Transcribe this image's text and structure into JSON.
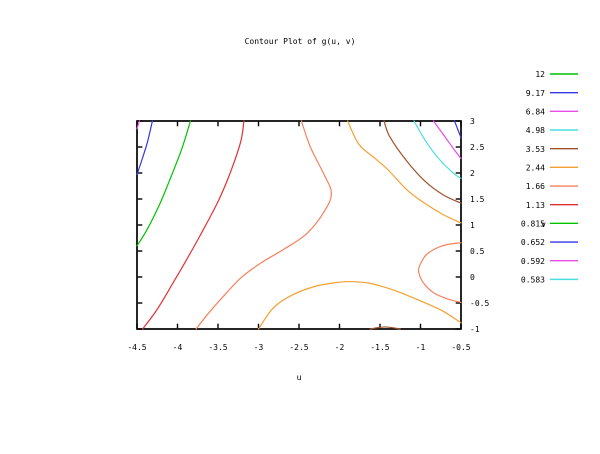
{
  "title": "Contour Plot of g(u, v)",
  "chart_data": {
    "type": "contour",
    "title": "Contour Plot of g(u, v)",
    "xlabel": "u",
    "ylabel": "v",
    "xlim": [
      -4.5,
      -0.5
    ],
    "ylim": [
      -1,
      3
    ],
    "x_ticks": [
      "-4.5",
      "-4",
      "-3.5",
      "-3",
      "-2.5",
      "-2",
      "-1.5",
      "-1",
      "-0.5"
    ],
    "y_ticks": [
      "-1",
      "-0.5",
      "0",
      "0.5",
      "1",
      "1.5",
      "2",
      "2.5",
      "3"
    ],
    "grid": false,
    "legend_position": "right-outside",
    "levels": [
      {
        "label": "12",
        "color": "#00c400"
      },
      {
        "label": "9.17",
        "color": "#3636e8"
      },
      {
        "label": "6.84",
        "color": "#ea4dea"
      },
      {
        "label": "4.98",
        "color": "#49dede"
      },
      {
        "label": "3.53",
        "color": "#a0522d"
      },
      {
        "label": "2.44",
        "color": "#f5a033"
      },
      {
        "label": "1.66",
        "color": "#f5825f"
      },
      {
        "label": "1.13",
        "color": "#e23333"
      },
      {
        "label": "0.815",
        "color": "#00c400"
      },
      {
        "label": "0.652",
        "color": "#3636e8"
      },
      {
        "label": "0.592",
        "color": "#ea4dea"
      },
      {
        "label": "0.583",
        "color": "#49dede"
      }
    ],
    "contour_paths": [
      {
        "level": "0.592",
        "color": "#ea4dea",
        "points": [
          [
            -4.47,
            3
          ],
          [
            -4.5,
            2.85
          ]
        ]
      },
      {
        "level": "0.652",
        "color": "#3636e8",
        "points": [
          [
            -4.31,
            3
          ],
          [
            -4.37,
            2.6
          ],
          [
            -4.44,
            2.25
          ],
          [
            -4.5,
            1.97
          ]
        ]
      },
      {
        "level": "0.815",
        "color": "#00c400",
        "points": [
          [
            -3.84,
            3
          ],
          [
            -3.95,
            2.45
          ],
          [
            -4.1,
            1.85
          ],
          [
            -4.22,
            1.4
          ],
          [
            -4.38,
            0.9
          ],
          [
            -4.5,
            0.6
          ]
        ]
      },
      {
        "level": "1.13",
        "color": "#e23333",
        "points": [
          [
            -3.18,
            3
          ],
          [
            -3.22,
            2.6
          ],
          [
            -3.35,
            2.0
          ],
          [
            -3.5,
            1.45
          ],
          [
            -3.72,
            0.8
          ],
          [
            -3.9,
            0.3
          ],
          [
            -4.05,
            -0.1
          ],
          [
            -4.25,
            -0.62
          ],
          [
            -4.43,
            -1
          ]
        ]
      },
      {
        "level": "1.66",
        "color": "#f5825f",
        "points": [
          [
            -2.47,
            3
          ],
          [
            -2.36,
            2.5
          ],
          [
            -2.2,
            2.0
          ],
          [
            -2.1,
            1.62
          ],
          [
            -2.18,
            1.28
          ],
          [
            -2.4,
            0.84
          ],
          [
            -2.68,
            0.54
          ],
          [
            -2.97,
            0.27
          ],
          [
            -3.22,
            -0.02
          ],
          [
            -3.45,
            -0.4
          ],
          [
            -3.63,
            -0.72
          ],
          [
            -3.77,
            -1
          ]
        ]
      },
      {
        "level": "1.66",
        "color": "#f5825f",
        "points": [
          [
            -0.5,
            0.66
          ],
          [
            -0.73,
            0.6
          ],
          [
            -0.92,
            0.44
          ],
          [
            -1.01,
            0.22
          ],
          [
            -1.02,
            0.08
          ],
          [
            -0.96,
            -0.12
          ],
          [
            -0.84,
            -0.3
          ],
          [
            -0.67,
            -0.42
          ],
          [
            -0.5,
            -0.49
          ]
        ]
      },
      {
        "level": "2.44",
        "color": "#f5a033",
        "points": [
          [
            -1.9,
            3
          ],
          [
            -1.76,
            2.55
          ],
          [
            -1.56,
            2.28
          ],
          [
            -1.4,
            2.06
          ],
          [
            -1.17,
            1.68
          ],
          [
            -0.95,
            1.42
          ],
          [
            -0.72,
            1.2
          ],
          [
            -0.5,
            1.04
          ]
        ]
      },
      {
        "level": "2.44",
        "color": "#f5a033",
        "points": [
          [
            -3.0,
            -1
          ],
          [
            -2.82,
            -0.6
          ],
          [
            -2.6,
            -0.36
          ],
          [
            -2.3,
            -0.18
          ],
          [
            -2.0,
            -0.1
          ],
          [
            -1.82,
            -0.09
          ],
          [
            -1.6,
            -0.13
          ],
          [
            -1.3,
            -0.27
          ],
          [
            -1.0,
            -0.46
          ],
          [
            -0.73,
            -0.65
          ],
          [
            -0.5,
            -0.88
          ]
        ]
      },
      {
        "level": "3.53",
        "color": "#a0522d",
        "points": [
          [
            -1.45,
            3
          ],
          [
            -1.38,
            2.7
          ],
          [
            -1.18,
            2.25
          ],
          [
            -0.95,
            1.85
          ],
          [
            -0.72,
            1.58
          ],
          [
            -0.5,
            1.42
          ]
        ]
      },
      {
        "level": "3.53",
        "color": "#a0522d",
        "points": [
          [
            -1.62,
            -1
          ],
          [
            -1.44,
            -0.96
          ],
          [
            -1.25,
            -1
          ]
        ]
      },
      {
        "level": "4.98",
        "color": "#49dede",
        "points": [
          [
            -1.08,
            3
          ],
          [
            -0.93,
            2.6
          ],
          [
            -0.76,
            2.25
          ],
          [
            -0.58,
            1.98
          ],
          [
            -0.5,
            1.9
          ]
        ]
      },
      {
        "level": "6.84",
        "color": "#ea4dea",
        "points": [
          [
            -0.84,
            3
          ],
          [
            -0.7,
            2.7
          ],
          [
            -0.57,
            2.42
          ],
          [
            -0.5,
            2.28
          ]
        ]
      },
      {
        "level": "9.17",
        "color": "#3636e8",
        "points": [
          [
            -0.58,
            3
          ],
          [
            -0.5,
            2.68
          ]
        ]
      }
    ]
  }
}
